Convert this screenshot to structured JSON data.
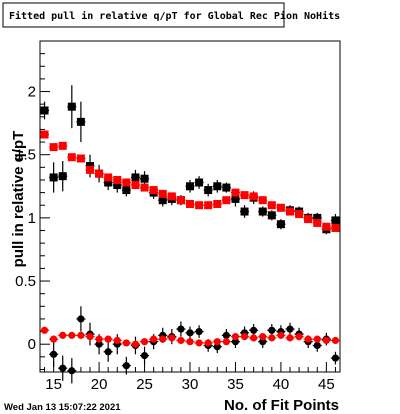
{
  "stamp": "Wed Jan 13 15:07:22 2021",
  "chart_data": {
    "type": "scatter",
    "title": "Fitted pull in relative q/pT for Global Rec Pion NoHits",
    "xlabel": "No. of Fit Points",
    "ylabel": "pull in relative q/pT",
    "xlim": [
      13.5,
      46.5
    ],
    "ylim": [
      -0.22,
      2.4
    ],
    "xticks": [
      15,
      20,
      25,
      30,
      35,
      40,
      45
    ],
    "yticks": [
      0,
      0.5,
      1,
      1.5,
      2
    ],
    "ytick_labels": [
      "0",
      "0.5",
      "1",
      "1.5",
      "2"
    ],
    "grid": false,
    "legend": "none",
    "series": [
      {
        "marker": "square",
        "color": "#000000",
        "x": [
          14,
          15,
          16,
          17,
          18,
          19,
          20,
          21,
          22,
          23,
          24,
          25,
          26,
          27,
          28,
          29,
          30,
          31,
          32,
          33,
          34,
          35,
          36,
          37,
          38,
          39,
          40,
          41,
          42,
          43,
          44,
          45,
          46
        ],
        "y": [
          1.85,
          1.32,
          1.33,
          1.88,
          1.76,
          1.41,
          1.35,
          1.28,
          1.26,
          1.22,
          1.32,
          1.31,
          1.2,
          1.14,
          1.15,
          1.14,
          1.25,
          1.28,
          1.22,
          1.25,
          1.24,
          1.15,
          1.05,
          1.16,
          1.05,
          1.02,
          0.95,
          1.06,
          1.05,
          1.0,
          1.0,
          0.91,
          0.98
        ],
        "err": [
          0.07,
          0.12,
          0.12,
          0.17,
          0.16,
          0.09,
          0.07,
          0.06,
          0.06,
          0.05,
          0.06,
          0.06,
          0.05,
          0.05,
          0.05,
          0.04,
          0.05,
          0.05,
          0.05,
          0.05,
          0.04,
          0.06,
          0.05,
          0.05,
          0.04,
          0.04,
          0.04,
          0.04,
          0.04,
          0.04,
          0.04,
          0.04,
          0.05
        ]
      },
      {
        "marker": "square",
        "color": "#ff0000",
        "x": [
          14,
          15,
          16,
          17,
          18,
          19,
          20,
          21,
          22,
          23,
          24,
          25,
          26,
          27,
          28,
          29,
          30,
          31,
          32,
          33,
          34,
          35,
          36,
          37,
          38,
          39,
          40,
          41,
          42,
          43,
          44,
          45,
          46
        ],
        "y": [
          1.66,
          1.56,
          1.57,
          1.48,
          1.47,
          1.38,
          1.35,
          1.32,
          1.3,
          1.28,
          1.26,
          1.24,
          1.22,
          1.19,
          1.17,
          1.14,
          1.11,
          1.1,
          1.1,
          1.11,
          1.14,
          1.2,
          1.18,
          1.17,
          1.14,
          1.1,
          1.08,
          1.05,
          1.03,
          0.99,
          0.96,
          0.93,
          0.92
        ],
        "err": [
          0.03,
          0.03,
          0.03,
          0.03,
          0.03,
          0.03,
          0.03,
          0.02,
          0.02,
          0.02,
          0.02,
          0.02,
          0.02,
          0.02,
          0.02,
          0.02,
          0.02,
          0.02,
          0.02,
          0.02,
          0.02,
          0.02,
          0.02,
          0.02,
          0.02,
          0.02,
          0.02,
          0.02,
          0.02,
          0.02,
          0.02,
          0.02,
          0.02
        ]
      },
      {
        "marker": "circle",
        "color": "#000000",
        "x": [
          15,
          16,
          17,
          18,
          19,
          20,
          21,
          22,
          23,
          24,
          25,
          26,
          27,
          28,
          29,
          30,
          31,
          32,
          33,
          34,
          35,
          36,
          37,
          38,
          39,
          40,
          41,
          42,
          43,
          44,
          45,
          46
        ],
        "y": [
          -0.08,
          -0.19,
          -0.21,
          0.2,
          0.08,
          0.0,
          -0.06,
          0.0,
          -0.17,
          -0.01,
          -0.09,
          0.02,
          0.07,
          0.06,
          0.12,
          0.09,
          0.1,
          -0.01,
          -0.02,
          0.07,
          0.02,
          0.09,
          0.11,
          0.02,
          0.11,
          0.1,
          0.12,
          0.08,
          0.02,
          -0.01,
          0.04,
          -0.11
        ],
        "err": [
          0.1,
          0.1,
          0.1,
          0.1,
          0.09,
          0.08,
          0.08,
          0.08,
          0.07,
          0.07,
          0.07,
          0.06,
          0.06,
          0.06,
          0.06,
          0.05,
          0.05,
          0.05,
          0.05,
          0.05,
          0.05,
          0.05,
          0.05,
          0.05,
          0.05,
          0.05,
          0.05,
          0.05,
          0.05,
          0.05,
          0.05,
          0.05
        ]
      },
      {
        "marker": "circle",
        "color": "#ff0000",
        "x": [
          14,
          15,
          16,
          17,
          18,
          19,
          20,
          21,
          22,
          23,
          24,
          25,
          26,
          27,
          28,
          29,
          30,
          31,
          32,
          33,
          34,
          35,
          36,
          37,
          38,
          39,
          40,
          41,
          42,
          43,
          44,
          45,
          46
        ],
        "y": [
          0.11,
          0.04,
          0.07,
          0.07,
          0.07,
          0.06,
          0.04,
          0.04,
          0.03,
          0.01,
          0.0,
          0.02,
          0.04,
          0.04,
          0.05,
          0.03,
          0.02,
          0.01,
          0.01,
          0.02,
          0.02,
          0.06,
          0.06,
          0.05,
          0.06,
          0.05,
          0.07,
          0.05,
          0.06,
          0.04,
          0.04,
          0.03,
          0.03
        ],
        "err": [
          0.02,
          0.02,
          0.02,
          0.02,
          0.02,
          0.02,
          0.02,
          0.02,
          0.02,
          0.02,
          0.02,
          0.02,
          0.02,
          0.02,
          0.02,
          0.02,
          0.02,
          0.02,
          0.02,
          0.02,
          0.02,
          0.02,
          0.02,
          0.02,
          0.02,
          0.02,
          0.02,
          0.02,
          0.02,
          0.02,
          0.02,
          0.02,
          0.02
        ]
      }
    ]
  }
}
